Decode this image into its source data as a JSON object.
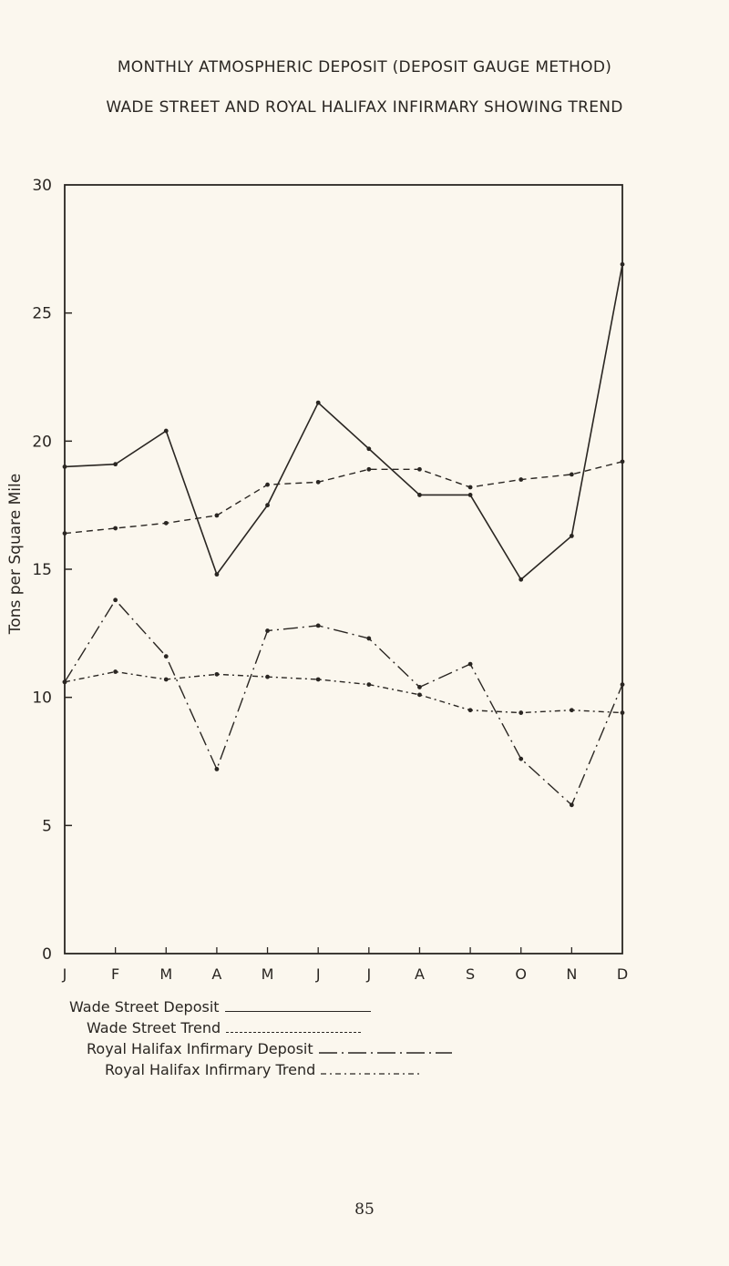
{
  "chart_data": {
    "type": "line",
    "title": "MONTHLY ATMOSPHERIC DEPOSIT (DEPOSIT GAUGE METHOD)",
    "subtitle": "WADE STREET AND ROYAL HALIFAX INFIRMARY SHOWING TREND",
    "ylabel": "Tons per Square Mile",
    "xlabel": "",
    "ylim": [
      0,
      30
    ],
    "yticks": [
      "0",
      "5",
      "10",
      "15",
      "20",
      "25",
      "30"
    ],
    "categories": [
      "J",
      "F",
      "M",
      "A",
      "M",
      "J",
      "J",
      "A",
      "S",
      "O",
      "N",
      "D"
    ],
    "grid": false,
    "legend_placement": "bottom",
    "series": [
      {
        "name": "Wade Street Deposit",
        "style": "solid",
        "values": [
          19.0,
          19.1,
          20.4,
          14.8,
          17.5,
          21.5,
          19.7,
          17.9,
          17.9,
          14.6,
          16.3,
          26.9
        ]
      },
      {
        "name": "Wade Street Trend",
        "style": "dashed",
        "values": [
          16.4,
          16.6,
          16.8,
          17.1,
          18.3,
          18.4,
          18.9,
          18.9,
          18.2,
          18.5,
          18.7,
          19.2
        ]
      },
      {
        "name": "Royal Halifax Infirmary Deposit",
        "style": "dash-dot",
        "values": [
          10.6,
          13.8,
          11.6,
          7.2,
          12.6,
          12.8,
          12.3,
          10.4,
          11.3,
          7.6,
          5.8,
          10.5
        ]
      },
      {
        "name": "Royal Halifax Infirmary Trend",
        "style": "dash-dot-fine",
        "values": [
          10.6,
          11.0,
          10.7,
          10.9,
          10.8,
          10.7,
          10.5,
          10.1,
          9.5,
          9.4,
          9.5,
          9.4
        ]
      }
    ]
  },
  "page_number": "85",
  "colors": {
    "ink": "#2a2622",
    "paper": "#fbf7ee"
  }
}
